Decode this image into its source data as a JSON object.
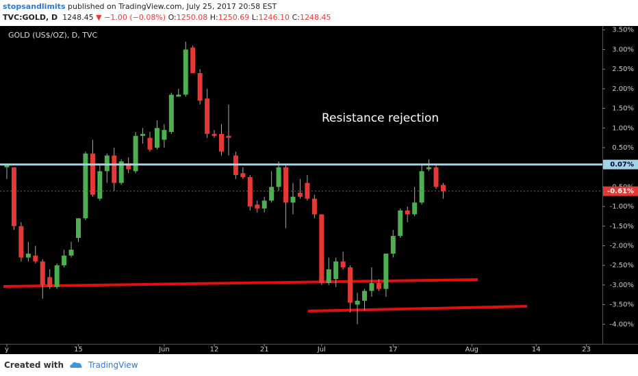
{
  "header": {
    "author": "stopsandlimits",
    "published": "published on TradingView.com, July 25, 2017 20:58 EST",
    "symbol": "TVC:GOLD, D",
    "last": "1248.45",
    "change": "▼ −1.00 (−0.08%)",
    "ohlc": [
      {
        "label": "O:",
        "value": "1250.08"
      },
      {
        "label": "H:",
        "value": "1250.69"
      },
      {
        "label": "L:",
        "value": "1246.10"
      },
      {
        "label": "C:",
        "value": "1248.45"
      }
    ]
  },
  "chart_data": {
    "type": "candlestick",
    "title": "GOLD (US$/OZ), D, TVC",
    "annotation": "Resistance rejection",
    "categories": [
      "y",
      null,
      null,
      null,
      null,
      null,
      null,
      null,
      null,
      null,
      "15",
      null,
      null,
      null,
      null,
      null,
      null,
      null,
      null,
      null,
      null,
      null,
      "Jun",
      null,
      null,
      null,
      null,
      null,
      null,
      "12",
      null,
      null,
      null,
      null,
      null,
      null,
      "21",
      null,
      null,
      null,
      null,
      null,
      null,
      null,
      "Jul",
      null,
      null,
      null,
      null,
      null,
      null,
      null,
      null,
      null,
      "17",
      null,
      null,
      null,
      null,
      null,
      null,
      null,
      null,
      null,
      null,
      "Aug",
      null,
      null,
      null,
      null,
      null,
      null,
      null,
      null,
      "14",
      null,
      null,
      null,
      null,
      null,
      null,
      "23"
    ],
    "open": [
      0,
      0,
      -1.5,
      -2.3,
      -2.25,
      -2.4,
      -2.8,
      -3.05,
      -2.5,
      -2.25,
      -1.8,
      -1.3,
      0.35,
      -0.8,
      -0.1,
      0.3,
      -0.4,
      0.1,
      -0.1,
      0.8,
      0.75,
      0.5,
      0.7,
      0.9,
      1.8,
      1.85,
      3.05,
      2.4,
      1.75,
      0.85,
      0.85,
      0.8,
      0.3,
      -0.15,
      -0.25,
      -0.95,
      -1.05,
      -0.85,
      -0.5,
      0,
      -0.9,
      -0.65,
      -0.4,
      -0.8,
      -1.2,
      -2.95,
      -2.85,
      -2.4,
      -2.55,
      -3.5,
      -3.4,
      -3.15,
      -2.95,
      -3.1,
      -2.2,
      -1.75,
      -1.1,
      -1.2,
      -0.9,
      -0.05,
      0,
      -0.45,
      null,
      null,
      null,
      null,
      null,
      null,
      null,
      null,
      null,
      null,
      null,
      null,
      null,
      null,
      null,
      null,
      null,
      null,
      null,
      null
    ],
    "high": [
      0.1,
      0,
      -1.4,
      -1.9,
      -2.0,
      -2.35,
      -2.6,
      -2.45,
      -2.1,
      -1.9,
      -1.3,
      0.4,
      0.7,
      0.1,
      0.35,
      0.5,
      0.2,
      0.25,
      0.9,
      1.0,
      0.9,
      1.2,
      1.1,
      1.9,
      2.0,
      3.2,
      3.1,
      2.5,
      2.0,
      0.95,
      1.1,
      1.6,
      0.4,
      0,
      -0.2,
      -0.85,
      -0.75,
      -0.1,
      0.15,
      0.05,
      -0.4,
      -0.3,
      -0.2,
      -0.7,
      -1.2,
      -2.3,
      -2.3,
      -2.15,
      -2.5,
      -3.2,
      -3.1,
      -2.55,
      -2.85,
      -2.2,
      -1.6,
      -1.05,
      -1.0,
      -0.5,
      0.05,
      0.2,
      0.1,
      -0.4,
      null,
      null,
      null,
      null,
      null,
      null,
      null,
      null,
      null,
      null,
      null,
      null,
      null,
      null,
      null,
      null,
      null,
      null,
      null,
      null
    ],
    "low": [
      -0.3,
      -1.6,
      -2.4,
      -2.4,
      -2.45,
      -3.35,
      -3.1,
      -3.1,
      -2.55,
      -2.3,
      -1.9,
      -1.35,
      -0.75,
      -0.85,
      -0.4,
      -0.6,
      -0.45,
      -0.15,
      -0.15,
      0.6,
      0.4,
      0.45,
      0.5,
      0.85,
      1.8,
      1.8,
      2.4,
      1.6,
      0.75,
      0.75,
      0.3,
      0.3,
      -0.3,
      -0.3,
      -1.1,
      -1.15,
      -1.15,
      -0.9,
      -0.6,
      -1.55,
      -1.2,
      -0.8,
      -0.85,
      -1.3,
      -3.0,
      -3.0,
      -3.05,
      -2.6,
      -3.7,
      -4.0,
      -3.65,
      -3.3,
      -3.15,
      -3.3,
      -2.3,
      -1.8,
      -1.4,
      -1.25,
      -0.95,
      -0.1,
      -0.55,
      -0.8,
      null,
      null,
      null,
      null,
      null,
      null,
      null,
      null,
      null,
      null,
      null,
      null,
      null,
      null,
      null,
      null,
      null,
      null,
      null,
      null
    ],
    "close": [
      0.07,
      -1.5,
      -2.3,
      -2.2,
      -2.4,
      -3.0,
      -3.05,
      -2.5,
      -2.25,
      -2.1,
      -1.3,
      0.35,
      -0.7,
      -0.1,
      0.3,
      -0.4,
      0.15,
      -0.05,
      0.8,
      0.85,
      0.45,
      1.0,
      0.95,
      1.85,
      1.85,
      3.0,
      2.4,
      1.7,
      0.85,
      0.8,
      0.4,
      0.75,
      -0.2,
      -0.25,
      -1.0,
      -1.05,
      -0.85,
      -0.5,
      0,
      -0.9,
      -0.75,
      -0.75,
      -0.8,
      -1.2,
      -2.95,
      -2.6,
      -2.4,
      -2.55,
      -3.45,
      -3.4,
      -3.15,
      -2.95,
      -3.1,
      -2.2,
      -1.75,
      -1.1,
      -1.2,
      -0.9,
      -0.1,
      0,
      -0.5,
      -0.61,
      null,
      null,
      null,
      null,
      null,
      null,
      null,
      null,
      null,
      null,
      null,
      null,
      null,
      null,
      null,
      null,
      null,
      null,
      null,
      null
    ],
    "up_color": "#4caf50",
    "down_color": "#e53935",
    "ylim": [
      -4.5,
      3.6
    ],
    "yticks": [
      {
        "value": 3.5,
        "label": "3.50%"
      },
      {
        "value": 3.0,
        "label": "3.00%"
      },
      {
        "value": 2.5,
        "label": "2.50%"
      },
      {
        "value": 2.0,
        "label": "2.00%"
      },
      {
        "value": 1.5,
        "label": "1.50%"
      },
      {
        "value": 1.0,
        "label": "1.00%"
      },
      {
        "value": 0.5,
        "label": "0.50%"
      },
      {
        "value": 0,
        "label": "0.00%"
      },
      {
        "value": -0.5,
        "label": "-0.50%"
      },
      {
        "value": -1.0,
        "label": "-1.00%"
      },
      {
        "value": -1.5,
        "label": "-1.50%"
      },
      {
        "value": -2.0,
        "label": "-2.00%"
      },
      {
        "value": -2.5,
        "label": "-2.50%"
      },
      {
        "value": -3.0,
        "label": "-3.00%"
      },
      {
        "value": -3.5,
        "label": "-3.50%"
      },
      {
        "value": -4.0,
        "label": "-4.00%"
      }
    ],
    "price_tags": [
      {
        "value": 0.07,
        "label": "0.07%",
        "color": "#9fd3e6"
      },
      {
        "value": -0.61,
        "label": "-0.61%",
        "color": "#e53935"
      }
    ],
    "grid": false
  }
}
